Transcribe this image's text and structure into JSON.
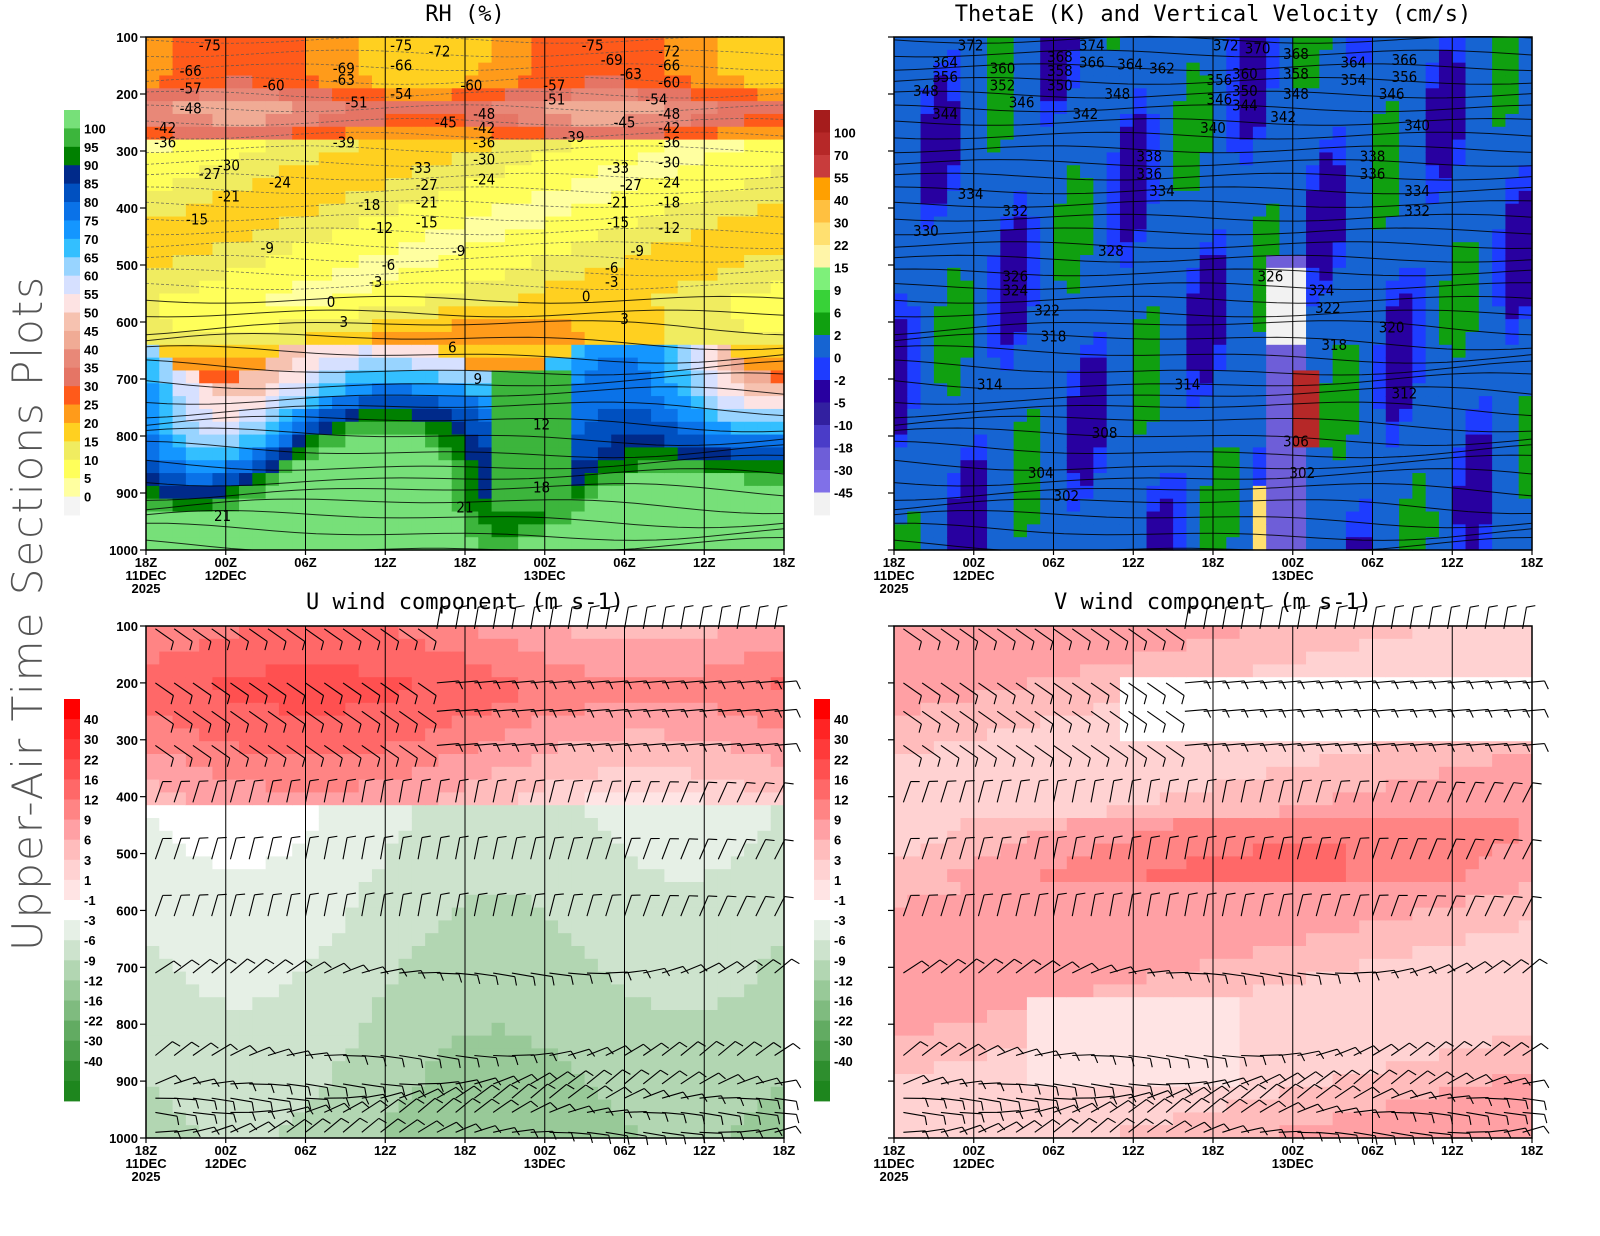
{
  "page": {
    "side_title": "Upper-Air Time Sections Plots"
  },
  "x_ticks": [
    {
      "label": "18Z",
      "sub1": "11DEC",
      "sub2": "2025"
    },
    {
      "label": "00Z",
      "sub1": "12DEC",
      "sub2": ""
    },
    {
      "label": "06Z",
      "sub1": "",
      "sub2": ""
    },
    {
      "label": "12Z",
      "sub1": "",
      "sub2": ""
    },
    {
      "label": "18Z",
      "sub1": "",
      "sub2": ""
    },
    {
      "label": "00Z",
      "sub1": "13DEC",
      "sub2": ""
    },
    {
      "label": "06Z",
      "sub1": "",
      "sub2": ""
    },
    {
      "label": "12Z",
      "sub1": "",
      "sub2": ""
    },
    {
      "label": "18Z",
      "sub1": "",
      "sub2": ""
    }
  ],
  "y_ticks": [
    "100",
    "200",
    "300",
    "400",
    "500",
    "600",
    "700",
    "800",
    "900",
    "1000"
  ],
  "chart_data": [
    {
      "id": "rh",
      "type": "heatmap",
      "title": "RH (%)",
      "xlabel": "",
      "ylabel": "",
      "y_unit": "hPa",
      "ylim": [
        1000,
        100
      ],
      "show_y_labels": true,
      "colorbar": {
        "labels": [
          "100",
          "95",
          "90",
          "85",
          "80",
          "75",
          "70",
          "65",
          "60",
          "55",
          "50",
          "45",
          "40",
          "35",
          "30",
          "25",
          "20",
          "15",
          "10",
          "5",
          "0"
        ],
        "colors": [
          "#77e079",
          "#3cb53c",
          "#008000",
          "#002a8a",
          "#0050c0",
          "#0a72e8",
          "#1496ff",
          "#33bfff",
          "#98d4ff",
          "#d6e0ff",
          "#fde3e3",
          "#f6c2b0",
          "#f0ab95",
          "#e88878",
          "#e57565",
          "#ff5a1a",
          "#ff9b1a",
          "#ffd020",
          "#f0ec60",
          "#ffff5a",
          "#ffffa0",
          "#f4f4f4"
        ]
      },
      "contour_overlay": "temperature (C)",
      "contour_labels": [
        {
          "t": 0.1,
          "p": 115,
          "v": "-75"
        },
        {
          "t": 0.07,
          "p": 160,
          "v": "-66"
        },
        {
          "t": 0.07,
          "p": 190,
          "v": "-57"
        },
        {
          "t": 0.07,
          "p": 225,
          "v": "-48"
        },
        {
          "t": 0.03,
          "p": 260,
          "v": "-42"
        },
        {
          "t": 0.03,
          "p": 285,
          "v": "-36"
        },
        {
          "t": 0.2,
          "p": 185,
          "v": "-60"
        },
        {
          "t": 0.31,
          "p": 155,
          "v": "-69"
        },
        {
          "t": 0.31,
          "p": 175,
          "v": "-63"
        },
        {
          "t": 0.33,
          "p": 215,
          "v": "-51"
        },
        {
          "t": 0.31,
          "p": 285,
          "v": "-39"
        },
        {
          "t": 0.4,
          "p": 115,
          "v": "-75"
        },
        {
          "t": 0.46,
          "p": 125,
          "v": "-72"
        },
        {
          "t": 0.4,
          "p": 150,
          "v": "-66"
        },
        {
          "t": 0.4,
          "p": 200,
          "v": "-54"
        },
        {
          "t": 0.47,
          "p": 250,
          "v": "-45"
        },
        {
          "t": 0.51,
          "p": 185,
          "v": "-60"
        },
        {
          "t": 0.53,
          "p": 235,
          "v": "-48"
        },
        {
          "t": 0.53,
          "p": 260,
          "v": "-42"
        },
        {
          "t": 0.53,
          "p": 285,
          "v": "-36"
        },
        {
          "t": 0.53,
          "p": 315,
          "v": "-30"
        },
        {
          "t": 0.53,
          "p": 350,
          "v": "-24"
        },
        {
          "t": 0.43,
          "p": 330,
          "v": "-33"
        },
        {
          "t": 0.44,
          "p": 360,
          "v": "-27"
        },
        {
          "t": 0.44,
          "p": 390,
          "v": "-21"
        },
        {
          "t": 0.44,
          "p": 425,
          "v": "-15"
        },
        {
          "t": 0.49,
          "p": 475,
          "v": "-9"
        },
        {
          "t": 0.7,
          "p": 115,
          "v": "-75"
        },
        {
          "t": 0.73,
          "p": 140,
          "v": "-69"
        },
        {
          "t": 0.76,
          "p": 165,
          "v": "-63"
        },
        {
          "t": 0.64,
          "p": 185,
          "v": "-57"
        },
        {
          "t": 0.64,
          "p": 210,
          "v": "-51"
        },
        {
          "t": 0.67,
          "p": 275,
          "v": "-39"
        },
        {
          "t": 0.75,
          "p": 250,
          "v": "-45"
        },
        {
          "t": 0.74,
          "p": 330,
          "v": "-33"
        },
        {
          "t": 0.76,
          "p": 360,
          "v": "-27"
        },
        {
          "t": 0.74,
          "p": 390,
          "v": "-21"
        },
        {
          "t": 0.74,
          "p": 425,
          "v": "-15"
        },
        {
          "t": 0.77,
          "p": 475,
          "v": "-9"
        },
        {
          "t": 0.73,
          "p": 505,
          "v": "-6"
        },
        {
          "t": 0.73,
          "p": 530,
          "v": "-3"
        },
        {
          "t": 0.82,
          "p": 125,
          "v": "-72"
        },
        {
          "t": 0.82,
          "p": 150,
          "v": "-66"
        },
        {
          "t": 0.82,
          "p": 180,
          "v": "-60"
        },
        {
          "t": 0.8,
          "p": 210,
          "v": "-54"
        },
        {
          "t": 0.82,
          "p": 235,
          "v": "-48"
        },
        {
          "t": 0.82,
          "p": 260,
          "v": "-42"
        },
        {
          "t": 0.82,
          "p": 285,
          "v": "-36"
        },
        {
          "t": 0.82,
          "p": 320,
          "v": "-30"
        },
        {
          "t": 0.82,
          "p": 355,
          "v": "-24"
        },
        {
          "t": 0.82,
          "p": 390,
          "v": "-18"
        },
        {
          "t": 0.82,
          "p": 435,
          "v": "-12"
        },
        {
          "t": 0.13,
          "p": 325,
          "v": "-30"
        },
        {
          "t": 0.1,
          "p": 340,
          "v": "-27"
        },
        {
          "t": 0.21,
          "p": 355,
          "v": "-24"
        },
        {
          "t": 0.13,
          "p": 380,
          "v": "-21"
        },
        {
          "t": 0.35,
          "p": 395,
          "v": "-18"
        },
        {
          "t": 0.08,
          "p": 420,
          "v": "-15"
        },
        {
          "t": 0.37,
          "p": 435,
          "v": "-12"
        },
        {
          "t": 0.19,
          "p": 470,
          "v": "-9"
        },
        {
          "t": 0.38,
          "p": 500,
          "v": "-6"
        },
        {
          "t": 0.36,
          "p": 530,
          "v": "-3"
        },
        {
          "t": 0.29,
          "p": 565,
          "v": "0"
        },
        {
          "t": 0.31,
          "p": 600,
          "v": "3"
        },
        {
          "t": 0.48,
          "p": 645,
          "v": "6"
        },
        {
          "t": 0.52,
          "p": 700,
          "v": "9"
        },
        {
          "t": 0.62,
          "p": 780,
          "v": "12"
        },
        {
          "t": 0.62,
          "p": 890,
          "v": "18"
        },
        {
          "t": 0.12,
          "p": 940,
          "v": "21"
        },
        {
          "t": 0.5,
          "p": 925,
          "v": "21"
        },
        {
          "t": 0.69,
          "p": 555,
          "v": "0"
        },
        {
          "t": 0.75,
          "p": 595,
          "v": "3"
        }
      ]
    },
    {
      "id": "thetae",
      "type": "heatmap",
      "title": "ThetaE (K) and Vertical Velocity (cm/s)",
      "xlabel": "",
      "ylabel": "",
      "y_unit": "hPa",
      "ylim": [
        1000,
        100
      ],
      "show_y_labels": false,
      "colorbar": {
        "labels": [
          "100",
          "70",
          "55",
          "40",
          "30",
          "22",
          "15",
          "9",
          "6",
          "2",
          "0",
          "-2",
          "-5",
          "-10",
          "-18",
          "-30",
          "-45"
        ],
        "colors": [
          "#a51c1c",
          "#b62828",
          "#c83c3c",
          "#ffa000",
          "#ffc040",
          "#ffe070",
          "#fff5a8",
          "#7ef07a",
          "#38d238",
          "#10a010",
          "#1664d2",
          "#1e3cff",
          "#2800a0",
          "#3220a0",
          "#4a3cc8",
          "#6e5ed8",
          "#8070e8",
          "#f2f2f2"
        ]
      },
      "contour_overlay": "theta-e (K)",
      "contour_labels": [
        {
          "t": 0.12,
          "p": 115,
          "v": "372"
        },
        {
          "t": 0.08,
          "p": 145,
          "v": "364"
        },
        {
          "t": 0.08,
          "p": 170,
          "v": "356"
        },
        {
          "t": 0.05,
          "p": 195,
          "v": "348"
        },
        {
          "t": 0.08,
          "p": 235,
          "v": "344"
        },
        {
          "t": 0.17,
          "p": 155,
          "v": "360"
        },
        {
          "t": 0.17,
          "p": 185,
          "v": "352"
        },
        {
          "t": 0.2,
          "p": 215,
          "v": "346"
        },
        {
          "t": 0.26,
          "p": 135,
          "v": "368"
        },
        {
          "t": 0.31,
          "p": 115,
          "v": "374"
        },
        {
          "t": 0.31,
          "p": 145,
          "v": "366"
        },
        {
          "t": 0.26,
          "p": 160,
          "v": "358"
        },
        {
          "t": 0.26,
          "p": 185,
          "v": "350"
        },
        {
          "t": 0.37,
          "p": 148,
          "v": "364"
        },
        {
          "t": 0.42,
          "p": 155,
          "v": "362"
        },
        {
          "t": 0.35,
          "p": 200,
          "v": "348"
        },
        {
          "t": 0.3,
          "p": 235,
          "v": "342"
        },
        {
          "t": 0.51,
          "p": 175,
          "v": "356"
        },
        {
          "t": 0.51,
          "p": 210,
          "v": "346"
        },
        {
          "t": 0.52,
          "p": 115,
          "v": "372"
        },
        {
          "t": 0.57,
          "p": 120,
          "v": "370"
        },
        {
          "t": 0.55,
          "p": 165,
          "v": "360"
        },
        {
          "t": 0.55,
          "p": 195,
          "v": "350"
        },
        {
          "t": 0.55,
          "p": 220,
          "v": "344"
        },
        {
          "t": 0.5,
          "p": 260,
          "v": "340"
        },
        {
          "t": 0.63,
          "p": 130,
          "v": "368"
        },
        {
          "t": 0.63,
          "p": 165,
          "v": "358"
        },
        {
          "t": 0.63,
          "p": 200,
          "v": "348"
        },
        {
          "t": 0.61,
          "p": 240,
          "v": "342"
        },
        {
          "t": 0.72,
          "p": 145,
          "v": "364"
        },
        {
          "t": 0.72,
          "p": 175,
          "v": "354"
        },
        {
          "t": 0.8,
          "p": 140,
          "v": "366"
        },
        {
          "t": 0.8,
          "p": 170,
          "v": "356"
        },
        {
          "t": 0.78,
          "p": 200,
          "v": "346"
        },
        {
          "t": 0.82,
          "p": 255,
          "v": "340"
        },
        {
          "t": 0.4,
          "p": 310,
          "v": "338"
        },
        {
          "t": 0.4,
          "p": 340,
          "v": "336"
        },
        {
          "t": 0.42,
          "p": 370,
          "v": "334"
        },
        {
          "t": 0.75,
          "p": 310,
          "v": "338"
        },
        {
          "t": 0.75,
          "p": 340,
          "v": "336"
        },
        {
          "t": 0.82,
          "p": 370,
          "v": "334"
        },
        {
          "t": 0.12,
          "p": 375,
          "v": "334"
        },
        {
          "t": 0.19,
          "p": 405,
          "v": "332"
        },
        {
          "t": 0.82,
          "p": 405,
          "v": "332"
        },
        {
          "t": 0.05,
          "p": 440,
          "v": "330"
        },
        {
          "t": 0.34,
          "p": 475,
          "v": "328"
        },
        {
          "t": 0.19,
          "p": 520,
          "v": "326"
        },
        {
          "t": 0.59,
          "p": 520,
          "v": "326"
        },
        {
          "t": 0.19,
          "p": 545,
          "v": "324"
        },
        {
          "t": 0.67,
          "p": 545,
          "v": "324"
        },
        {
          "t": 0.24,
          "p": 580,
          "v": "322"
        },
        {
          "t": 0.68,
          "p": 575,
          "v": "322"
        },
        {
          "t": 0.78,
          "p": 610,
          "v": "320"
        },
        {
          "t": 0.25,
          "p": 625,
          "v": "318"
        },
        {
          "t": 0.69,
          "p": 640,
          "v": "318"
        },
        {
          "t": 0.15,
          "p": 710,
          "v": "314"
        },
        {
          "t": 0.46,
          "p": 710,
          "v": "314"
        },
        {
          "t": 0.8,
          "p": 725,
          "v": "312"
        },
        {
          "t": 0.33,
          "p": 795,
          "v": "308"
        },
        {
          "t": 0.63,
          "p": 810,
          "v": "306"
        },
        {
          "t": 0.23,
          "p": 865,
          "v": "304"
        },
        {
          "t": 0.64,
          "p": 865,
          "v": "302"
        },
        {
          "t": 0.27,
          "p": 905,
          "v": "302"
        }
      ]
    },
    {
      "id": "u",
      "type": "heatmap",
      "title": "U wind component (m s-1)",
      "xlabel": "",
      "ylabel": "",
      "y_unit": "hPa",
      "ylim": [
        1000,
        100
      ],
      "show_y_labels": true,
      "colorbar": {
        "labels": [
          "40",
          "30",
          "22",
          "16",
          "12",
          "9",
          "6",
          "3",
          "1",
          "-1",
          "-3",
          "-6",
          "-9",
          "-12",
          "-16",
          "-22",
          "-30",
          "-40"
        ],
        "colors": [
          "#ff0000",
          "#ff2424",
          "#ff3a3a",
          "#ff5050",
          "#ff6868",
          "#ff8484",
          "#ffa0a4",
          "#ffbcbc",
          "#ffd2d2",
          "#ffe4e4",
          "#ffffff",
          "#e6f0e6",
          "#cde3cd",
          "#b2d6b2",
          "#98c998",
          "#7fbb7f",
          "#62ab62",
          "#4a9e4a",
          "#2e8e2e",
          "#1e861e"
        ]
      },
      "overlay": "wind barbs"
    },
    {
      "id": "v",
      "type": "heatmap",
      "title": "V wind component (m s-1)",
      "xlabel": "",
      "ylabel": "",
      "y_unit": "hPa",
      "ylim": [
        1000,
        100
      ],
      "show_y_labels": false,
      "colorbar": {
        "labels": [
          "40",
          "30",
          "22",
          "16",
          "12",
          "9",
          "6",
          "3",
          "1",
          "-1",
          "-3",
          "-6",
          "-9",
          "-12",
          "-16",
          "-22",
          "-30",
          "-40"
        ],
        "colors": [
          "#ff0000",
          "#ff2424",
          "#ff3a3a",
          "#ff5050",
          "#ff6868",
          "#ff8484",
          "#ffa0a4",
          "#ffbcbc",
          "#ffd2d2",
          "#ffe4e4",
          "#ffffff",
          "#e6f0e6",
          "#cde3cd",
          "#b2d6b2",
          "#98c998",
          "#7fbb7f",
          "#62ab62",
          "#4a9e4a",
          "#2e8e2e",
          "#1e861e"
        ]
      },
      "overlay": "wind barbs"
    }
  ]
}
